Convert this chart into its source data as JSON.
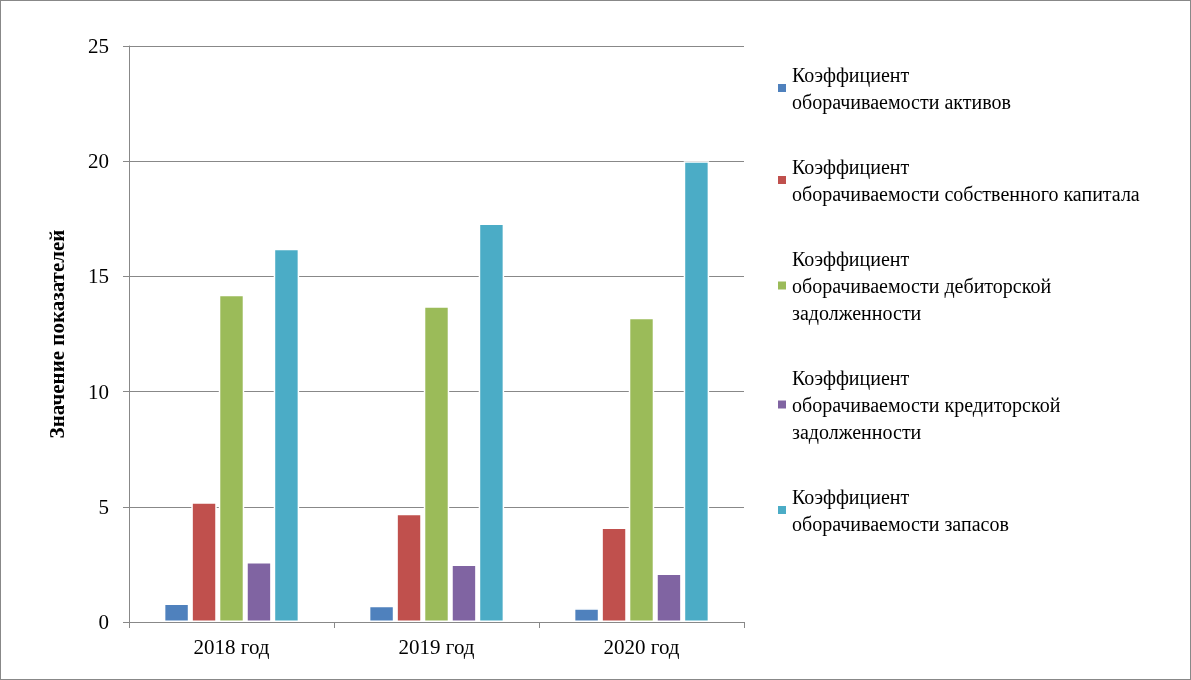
{
  "chart_data": {
    "type": "bar",
    "ylabel": "Значение показателей",
    "categories": [
      "2018 год",
      "2019 год",
      "2020 год"
    ],
    "series": [
      {
        "name": "Коэффициент оборачиваемости активов",
        "color": "#4f81bd",
        "values": [
          0.8,
          0.7,
          0.6
        ]
      },
      {
        "name": "Коэффициент оборачиваемости собственного капитала",
        "color": "#c0504d",
        "values": [
          5.2,
          4.7,
          4.1
        ]
      },
      {
        "name": "Коэффициент оборачиваемости дебиторской задолженности",
        "color": "#9bbb59",
        "values": [
          14.2,
          13.7,
          13.2
        ]
      },
      {
        "name": "Коэффициент оборачиваемости кредиторской задолженности",
        "color": "#8064a2",
        "values": [
          2.6,
          2.5,
          2.1
        ]
      },
      {
        "name": "Коэффициент оборачиваемости запасов",
        "color": "#4bacc6",
        "values": [
          16.2,
          17.3,
          20.0
        ]
      }
    ],
    "ylim": [
      0,
      25
    ],
    "yticks": [
      0,
      5,
      10,
      15,
      20,
      25
    ],
    "grid": "y",
    "legend": "right"
  }
}
